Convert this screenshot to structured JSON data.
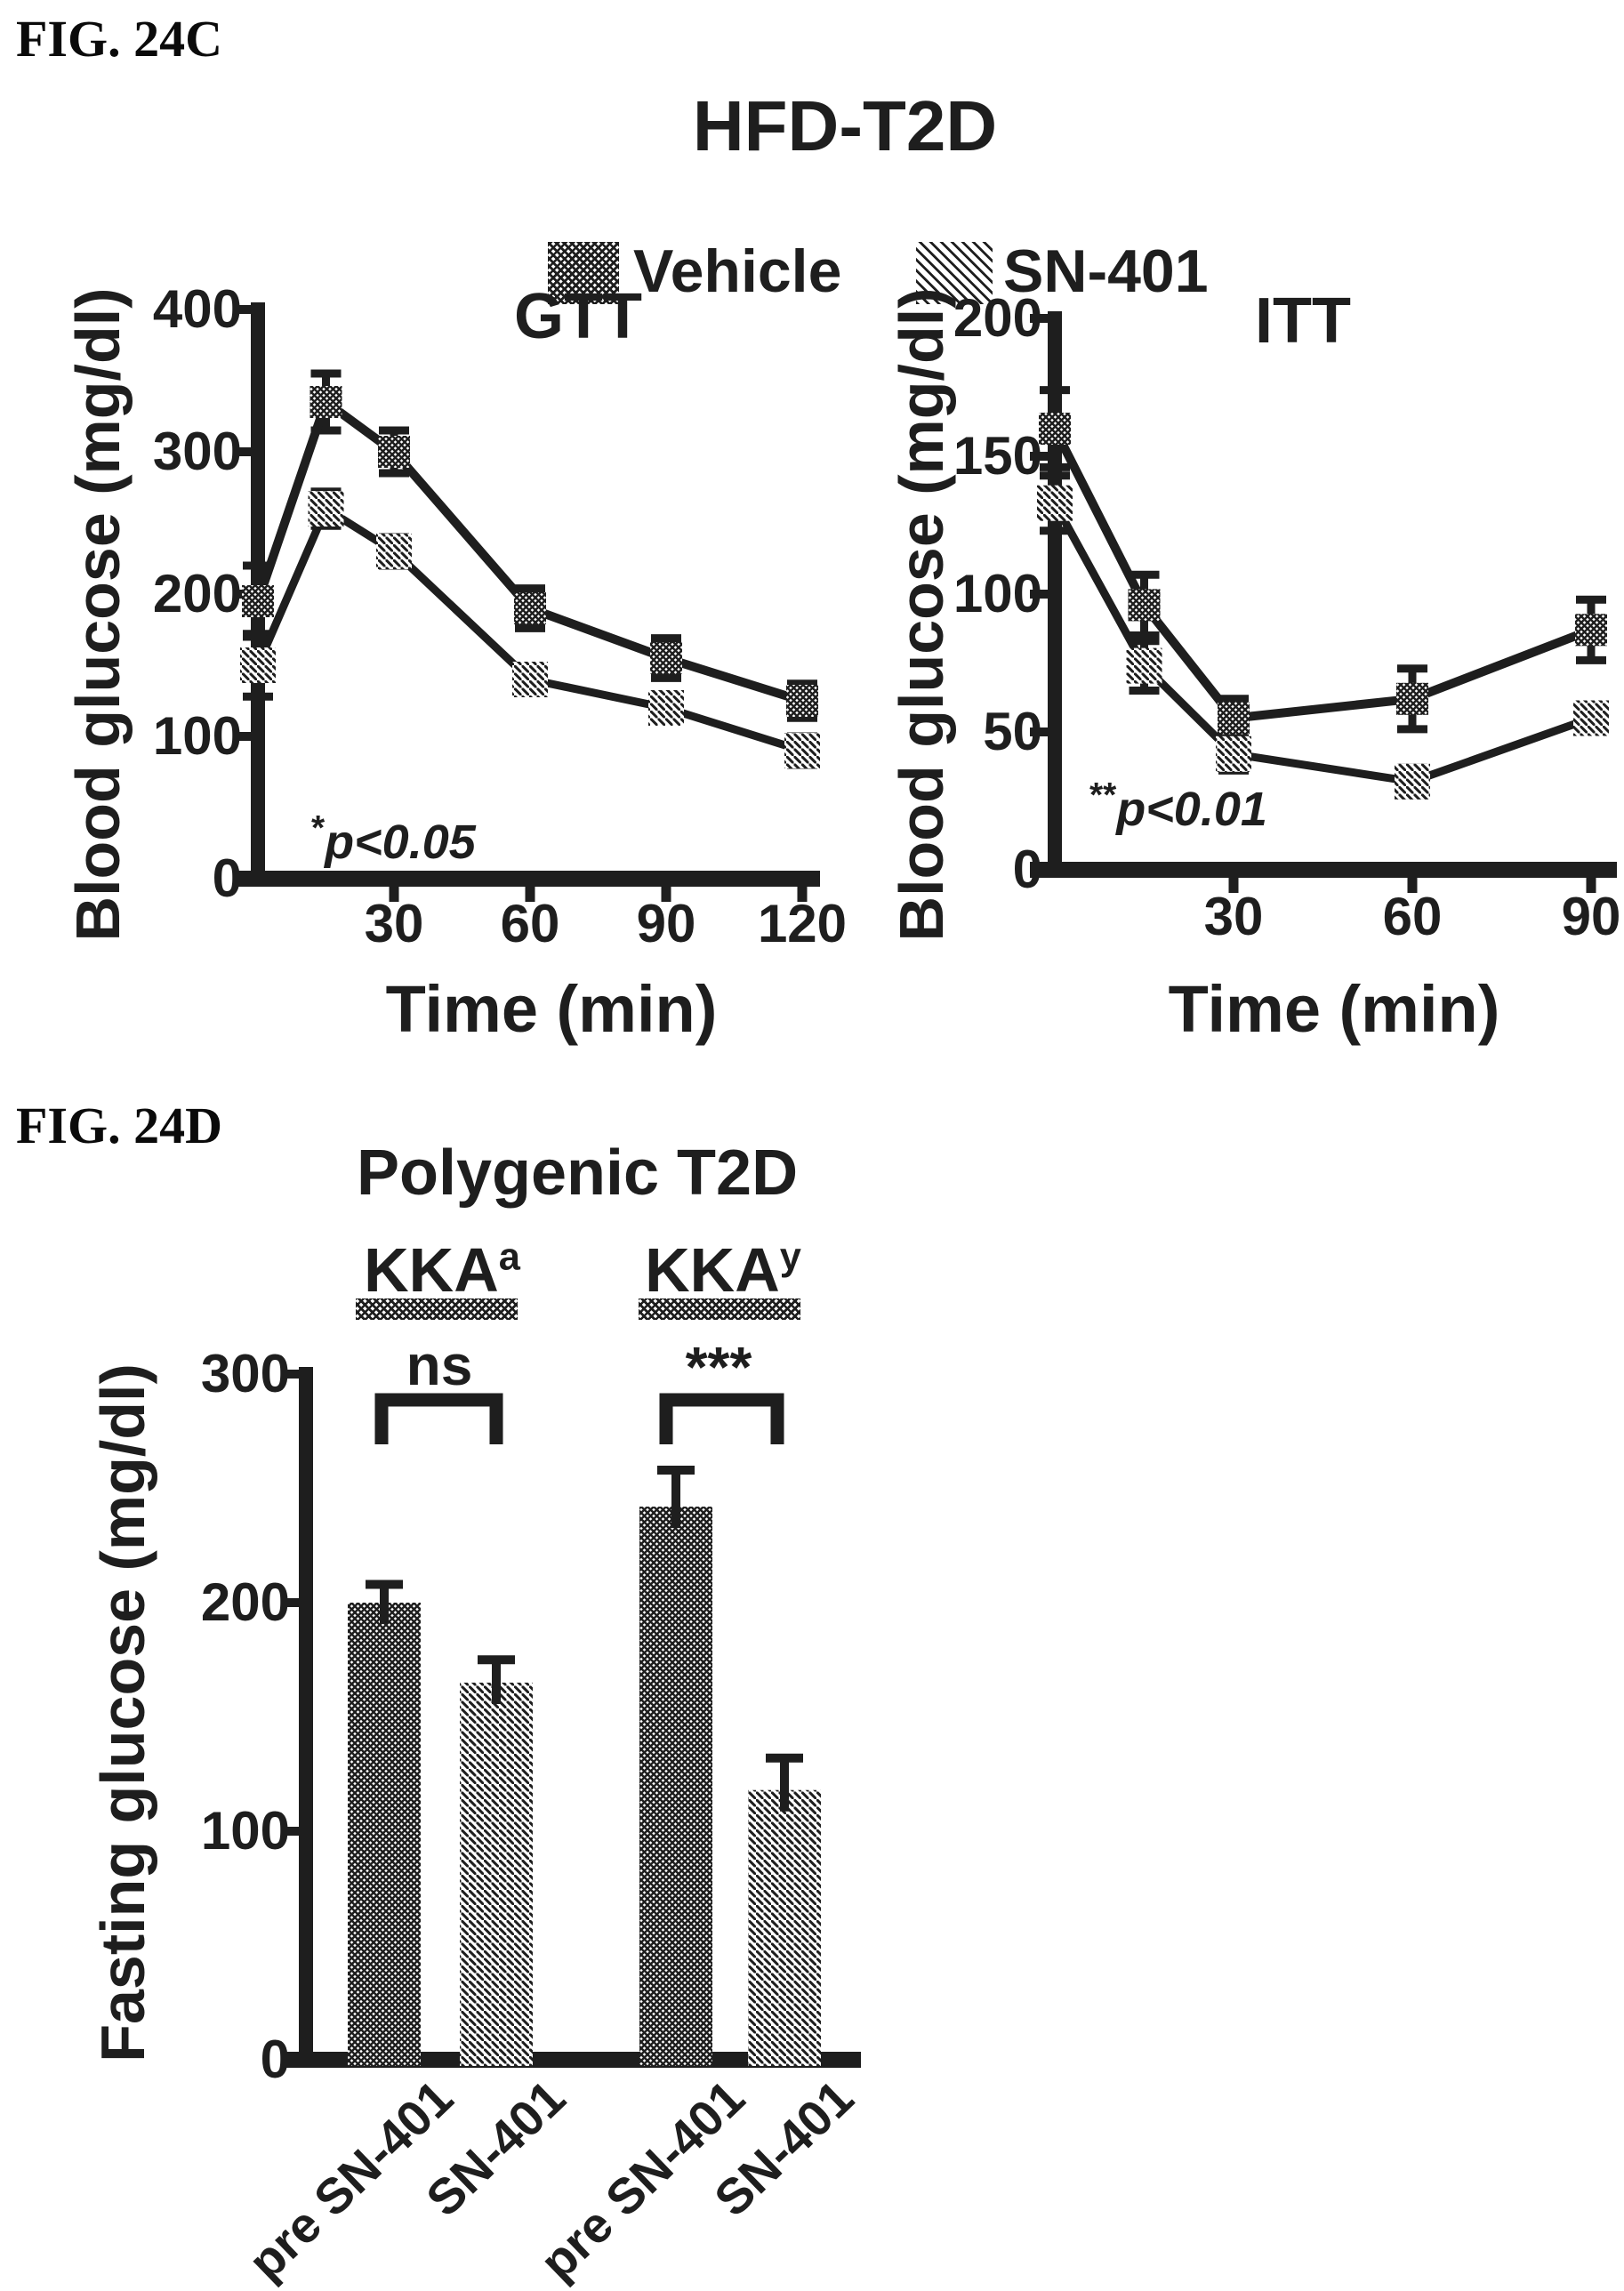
{
  "colors": {
    "ink": "#1e1e1e"
  },
  "fig_c": {
    "label": "FIG. 24C",
    "title": "HFD-T2D",
    "legend": [
      {
        "label": "Vehicle",
        "pattern": "crosshatch"
      },
      {
        "label": "SN-401",
        "pattern": "diagonal"
      }
    ]
  },
  "fig_d": {
    "label": "FIG. 24D"
  },
  "chart_data": [
    {
      "type": "line",
      "id": "gtt",
      "title": "GTT",
      "ylabel": "Blood glucose (mg/dl)",
      "xlabel": "Time (min)",
      "ylim": [
        0,
        400
      ],
      "xlim": [
        0,
        124
      ],
      "yticks": [
        400,
        300,
        200,
        100,
        0
      ],
      "xticks": [
        30,
        60,
        90,
        120
      ],
      "x": [
        0,
        15,
        30,
        60,
        90,
        120
      ],
      "annotation": {
        "stars": "*",
        "text": "p<0.05"
      },
      "grid": false,
      "series": [
        {
          "name": "Vehicle",
          "values": [
            195,
            335,
            300,
            190,
            155,
            125
          ],
          "errors": [
            25,
            20,
            15,
            14,
            14,
            12
          ]
        },
        {
          "name": "SN-401",
          "values": [
            150,
            260,
            230,
            140,
            120,
            90
          ],
          "errors": [
            22,
            12,
            10,
            8,
            8,
            10
          ]
        }
      ]
    },
    {
      "type": "line",
      "id": "itt",
      "title": "ITT",
      "ylabel": "Blood glucose (mg/dl)",
      "xlabel": "Time (min)",
      "ylim": [
        0,
        200
      ],
      "xlim": [
        0,
        93
      ],
      "yticks": [
        200,
        150,
        100,
        50,
        0
      ],
      "xticks": [
        30,
        60,
        90
      ],
      "x": [
        0,
        15,
        30,
        60,
        90
      ],
      "annotation": {
        "stars": "**",
        "text": "p<0.01"
      },
      "grid": false,
      "series": [
        {
          "name": "Vehicle",
          "values": [
            160,
            96,
            55,
            62,
            87
          ],
          "errors": [
            14,
            11,
            7,
            11,
            11
          ]
        },
        {
          "name": "SN-401",
          "values": [
            133,
            74,
            42,
            32,
            55
          ],
          "errors": [
            10,
            9,
            6,
            5,
            5
          ]
        }
      ]
    },
    {
      "type": "bar",
      "id": "fasting",
      "title": "Polygenic T2D",
      "ylabel": "Fasting glucose (mg/dl)",
      "ylim": [
        0,
        300
      ],
      "yticks": [
        300,
        200,
        100,
        0
      ],
      "groups": [
        {
          "label": "KKA",
          "sup": "a",
          "sig": "ns"
        },
        {
          "label": "KKA",
          "sup": "y",
          "sig": "***"
        }
      ],
      "categories": [
        "pre SN-401",
        "SN-401",
        "pre SN-401",
        "SN-401"
      ],
      "values": [
        200,
        165,
        242,
        118
      ],
      "errors": [
        8,
        10,
        16,
        14
      ],
      "series_map": [
        "Vehicle",
        "SN-401",
        "Vehicle",
        "SN-401"
      ],
      "grid": false
    }
  ]
}
